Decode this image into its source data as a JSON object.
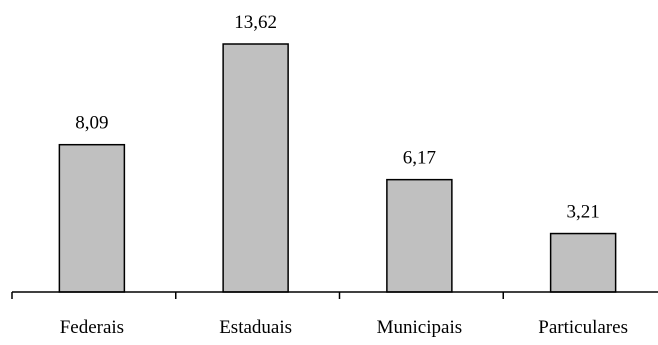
{
  "chart_data": {
    "type": "bar",
    "categories": [
      "Federais",
      "Estaduais",
      "Municipais",
      "Particulares"
    ],
    "values": [
      8.09,
      13.62,
      6.17,
      3.21
    ],
    "value_labels": [
      "8,09",
      "13,62",
      "6,17",
      "3,21"
    ],
    "title": "",
    "xlabel": "",
    "ylabel": "",
    "ylim": [
      0,
      13.62
    ],
    "grid": false,
    "legend": "none",
    "colors": {
      "bar_fill": "#c0c0c0",
      "bar_stroke": "#000000",
      "axis": "#000000"
    }
  }
}
